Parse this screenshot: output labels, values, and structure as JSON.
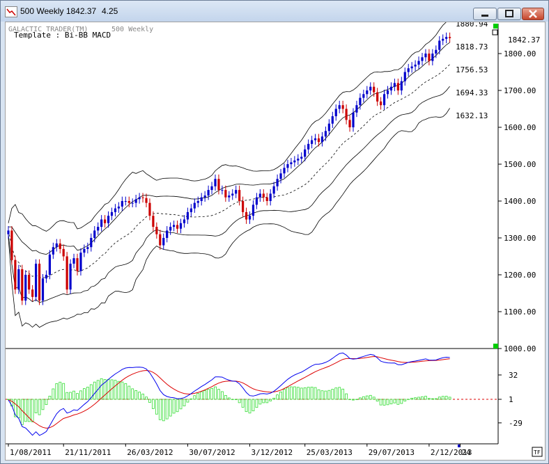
{
  "window": {
    "title": "500 Weekly 1842.37",
    "title_value": "4.25"
  },
  "header": {
    "app_name": "GALACTIC TRADER(TM)",
    "chart_name": "500 Weekly",
    "template": "Template : Bi-BB MACD"
  },
  "footer": {
    "tf_label": "TF"
  },
  "colors": {
    "up_candle": "#0000cc",
    "down_candle": "#cc0000",
    "bands": "#000000",
    "macd_line": "#0000ee",
    "signal_line": "#dd0000",
    "histogram": "#33dd33",
    "zero_line": "#dd0000",
    "marker": "#00cc00"
  },
  "chart_data": [
    {
      "type": "candlestick",
      "title": "500 Weekly",
      "last_price": 1842.37,
      "ylim": [
        1000,
        2000
      ],
      "yticks": [
        "1000.00",
        "1100.00",
        "1200.00",
        "1300.00",
        "1400.00",
        "1500.00",
        "1600.00",
        "1700.00",
        "1800.00"
      ],
      "last_price_label": "1842.37",
      "band_labels": [
        {
          "value": 1880.94,
          "text": "1880.94"
        },
        {
          "value": 1818.73,
          "text": "1818.73"
        },
        {
          "value": 1756.53,
          "text": "1756.53"
        },
        {
          "value": 1694.33,
          "text": "1694.33"
        },
        {
          "value": 1632.13,
          "text": "1632.13"
        }
      ],
      "x_labels": [
        "1/08/2011",
        "21/11/2011",
        "26/03/2012",
        "30/07/2012",
        "3/12/2012",
        "25/03/2013",
        "29/07/2013",
        "2/12/2013",
        "24"
      ],
      "x_label_index": [
        0,
        16,
        34,
        52,
        70,
        86,
        104,
        122,
        131
      ],
      "closes": [
        1320,
        1240,
        1160,
        1215,
        1130,
        1200,
        1160,
        1140,
        1230,
        1130,
        1190,
        1200,
        1255,
        1275,
        1285,
        1270,
        1250,
        1160,
        1230,
        1245,
        1210,
        1260,
        1270,
        1275,
        1300,
        1320,
        1330,
        1350,
        1340,
        1360,
        1370,
        1380,
        1385,
        1400,
        1400,
        1395,
        1395,
        1405,
        1410,
        1408,
        1395,
        1360,
        1330,
        1310,
        1280,
        1300,
        1320,
        1330,
        1335,
        1325,
        1340,
        1350,
        1370,
        1380,
        1395,
        1400,
        1410,
        1415,
        1430,
        1440,
        1460,
        1430,
        1430,
        1410,
        1415,
        1420,
        1430,
        1400,
        1370,
        1350,
        1360,
        1390,
        1410,
        1420,
        1410,
        1400,
        1420,
        1440,
        1460,
        1475,
        1490,
        1500,
        1505,
        1510,
        1515,
        1520,
        1540,
        1555,
        1565,
        1570,
        1560,
        1575,
        1590,
        1610,
        1630,
        1650,
        1660,
        1650,
        1620,
        1600,
        1640,
        1660,
        1680,
        1690,
        1700,
        1710,
        1695,
        1670,
        1660,
        1690,
        1700,
        1710,
        1720,
        1700,
        1725,
        1750,
        1760,
        1765,
        1770,
        1780,
        1790,
        1800,
        1780,
        1800,
        1810,
        1835,
        1840,
        1845,
        1842
      ]
    },
    {
      "type": "macd",
      "yticks": [
        "32",
        "1",
        "-29"
      ],
      "ylim": [
        -70,
        70
      ]
    }
  ]
}
